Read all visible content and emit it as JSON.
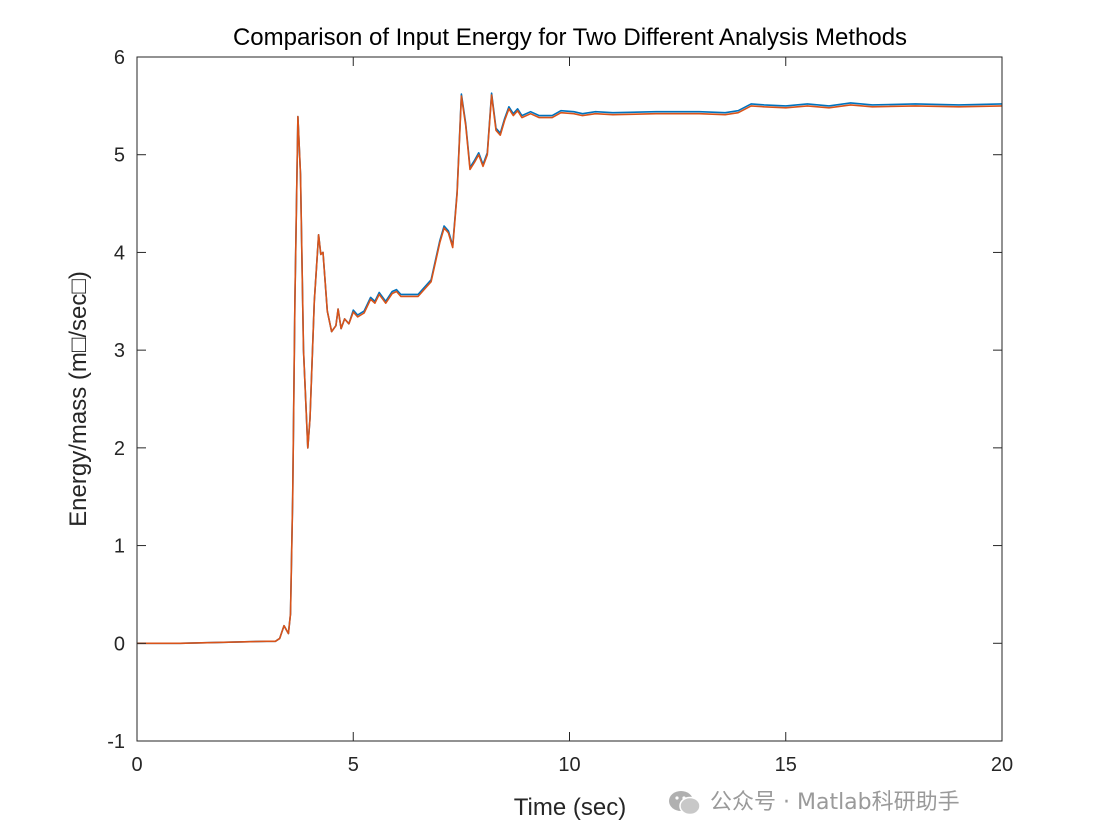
{
  "chart_data": {
    "type": "line",
    "title": "Comparison of Input Energy for Two Different Analysis Methods",
    "xlabel": "Time (sec)",
    "ylabel": "Energy/mass (m□/sec□)",
    "xlim": [
      0,
      20
    ],
    "ylim": [
      -1,
      6
    ],
    "xticks": [
      0,
      5,
      10,
      15,
      20
    ],
    "yticks": [
      -1,
      0,
      1,
      2,
      3,
      4,
      5,
      6
    ],
    "grid": false,
    "box": true,
    "x": [
      0,
      1,
      2,
      3,
      3.2,
      3.3,
      3.4,
      3.5,
      3.55,
      3.6,
      3.65,
      3.72,
      3.78,
      3.85,
      3.95,
      4.0,
      4.1,
      4.2,
      4.25,
      4.3,
      4.4,
      4.5,
      4.6,
      4.65,
      4.72,
      4.8,
      4.9,
      5.0,
      5.1,
      5.25,
      5.4,
      5.5,
      5.6,
      5.75,
      5.9,
      6.0,
      6.1,
      6.5,
      6.8,
      7.0,
      7.1,
      7.2,
      7.3,
      7.4,
      7.5,
      7.6,
      7.7,
      7.8,
      7.9,
      8.0,
      8.1,
      8.2,
      8.3,
      8.4,
      8.5,
      8.6,
      8.7,
      8.8,
      8.9,
      9.1,
      9.3,
      9.6,
      9.8,
      10.1,
      10.3,
      10.6,
      11,
      12,
      13,
      13.6,
      13.9,
      14.2,
      14.5,
      15,
      15.5,
      16,
      16.5,
      17,
      18,
      19,
      20
    ],
    "series": [
      {
        "color": "#0072BD",
        "values": [
          0,
          0,
          0.01,
          0.02,
          0.02,
          0.05,
          0.18,
          0.1,
          0.3,
          1.5,
          3.5,
          5.39,
          4.8,
          3.0,
          2.0,
          2.3,
          3.5,
          4.18,
          3.98,
          4.0,
          3.4,
          3.19,
          3.25,
          3.42,
          3.22,
          3.32,
          3.27,
          3.41,
          3.36,
          3.4,
          3.54,
          3.5,
          3.59,
          3.5,
          3.6,
          3.62,
          3.57,
          3.57,
          3.72,
          4.12,
          4.27,
          4.22,
          4.07,
          4.62,
          5.62,
          5.32,
          4.87,
          4.94,
          5.02,
          4.9,
          5.02,
          5.63,
          5.27,
          5.22,
          5.37,
          5.49,
          5.42,
          5.47,
          5.4,
          5.44,
          5.4,
          5.4,
          5.45,
          5.44,
          5.42,
          5.44,
          5.43,
          5.44,
          5.44,
          5.43,
          5.45,
          5.52,
          5.51,
          5.5,
          5.52,
          5.5,
          5.53,
          5.51,
          5.52,
          5.51,
          5.52
        ]
      },
      {
        "color": "#D95319",
        "values": [
          0,
          0,
          0.01,
          0.02,
          0.02,
          0.05,
          0.18,
          0.1,
          0.3,
          1.5,
          3.5,
          5.39,
          4.8,
          3.0,
          2.0,
          2.3,
          3.5,
          4.18,
          3.98,
          4.0,
          3.4,
          3.19,
          3.25,
          3.42,
          3.22,
          3.32,
          3.27,
          3.39,
          3.34,
          3.38,
          3.52,
          3.48,
          3.57,
          3.48,
          3.58,
          3.6,
          3.55,
          3.55,
          3.7,
          4.1,
          4.25,
          4.2,
          4.05,
          4.6,
          5.6,
          5.3,
          4.85,
          4.92,
          5.0,
          4.88,
          5.0,
          5.61,
          5.25,
          5.2,
          5.35,
          5.47,
          5.4,
          5.45,
          5.38,
          5.42,
          5.38,
          5.38,
          5.43,
          5.42,
          5.4,
          5.42,
          5.41,
          5.42,
          5.42,
          5.41,
          5.43,
          5.5,
          5.49,
          5.48,
          5.5,
          5.48,
          5.51,
          5.49,
          5.5,
          5.49,
          5.5
        ]
      }
    ]
  },
  "watermark": {
    "text": "公众号 · Matlab科研助手",
    "icon": "wechat-icon"
  }
}
